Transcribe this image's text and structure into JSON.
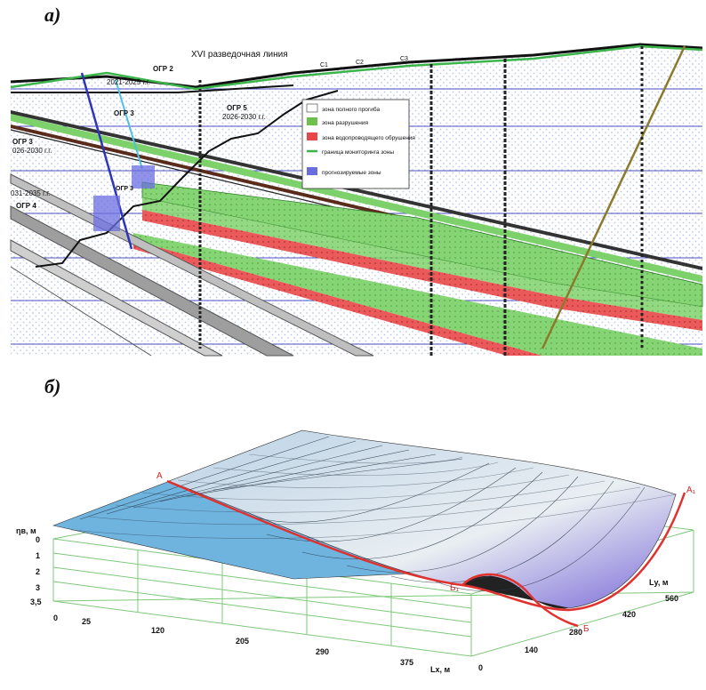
{
  "panel_a": {
    "label": "а)",
    "title": "XVI разведочная линия",
    "ogr_labels": [
      {
        "id": "ogr2",
        "text": "ОГР 2"
      },
      {
        "id": "ogr3a",
        "text": "ОГР 3"
      },
      {
        "id": "ogr3b",
        "text": "ОГР 3"
      },
      {
        "id": "ogr5",
        "text": "ОГР 5"
      },
      {
        "id": "ogr4",
        "text": "ОГР 4"
      },
      {
        "id": "ogr-a",
        "text": "ОГР 3"
      }
    ],
    "period_labels": [
      {
        "id": "p1",
        "text": "2021-2025 г.г."
      },
      {
        "id": "p2",
        "text": "2026-2030 г.г."
      },
      {
        "id": "p3",
        "text": "026-2030 г.г."
      },
      {
        "id": "p4",
        "text": "031-2035 г.г."
      }
    ],
    "well_labels": [
      "C1",
      "C2",
      "C3"
    ],
    "legend": {
      "items": [
        {
          "label": "зона полного прогиба",
          "color": "#ffffff"
        },
        {
          "label": "зона разрушения",
          "color": "#6dc04b"
        },
        {
          "label": "зона водопроводящего обрушения",
          "color": "#e8474a"
        },
        {
          "label": "граница мониторинга зоны",
          "color": "#3bb54a"
        },
        {
          "label": "прогнозируемые зоны",
          "color": "#6a6de0"
        }
      ]
    },
    "colors": {
      "dots": "#c5d2ee",
      "green_zone": "#7cd16a",
      "red_zone": "#e8474a",
      "blue_line": "#2f35b8",
      "surface_green": "#3bb54a"
    }
  },
  "panel_b": {
    "label": "б)",
    "axis_z": {
      "label": "ηв, м",
      "ticks": [
        "0",
        "1",
        "2",
        "3",
        "3,5"
      ]
    },
    "axis_x": {
      "label": "Lх, м",
      "ticks": [
        "0",
        "25",
        "120",
        "205",
        "290",
        "375"
      ]
    },
    "axis_y": {
      "label": "Lу, м",
      "ticks": [
        "0",
        "140",
        "280",
        "420",
        "560"
      ]
    },
    "point_labels": [
      "А",
      "А₁",
      "Б",
      "Б₁"
    ],
    "colors": {
      "surface": "#6fb3df",
      "trough": "#8a7ce0",
      "profile_line": "#e0312e"
    }
  }
}
